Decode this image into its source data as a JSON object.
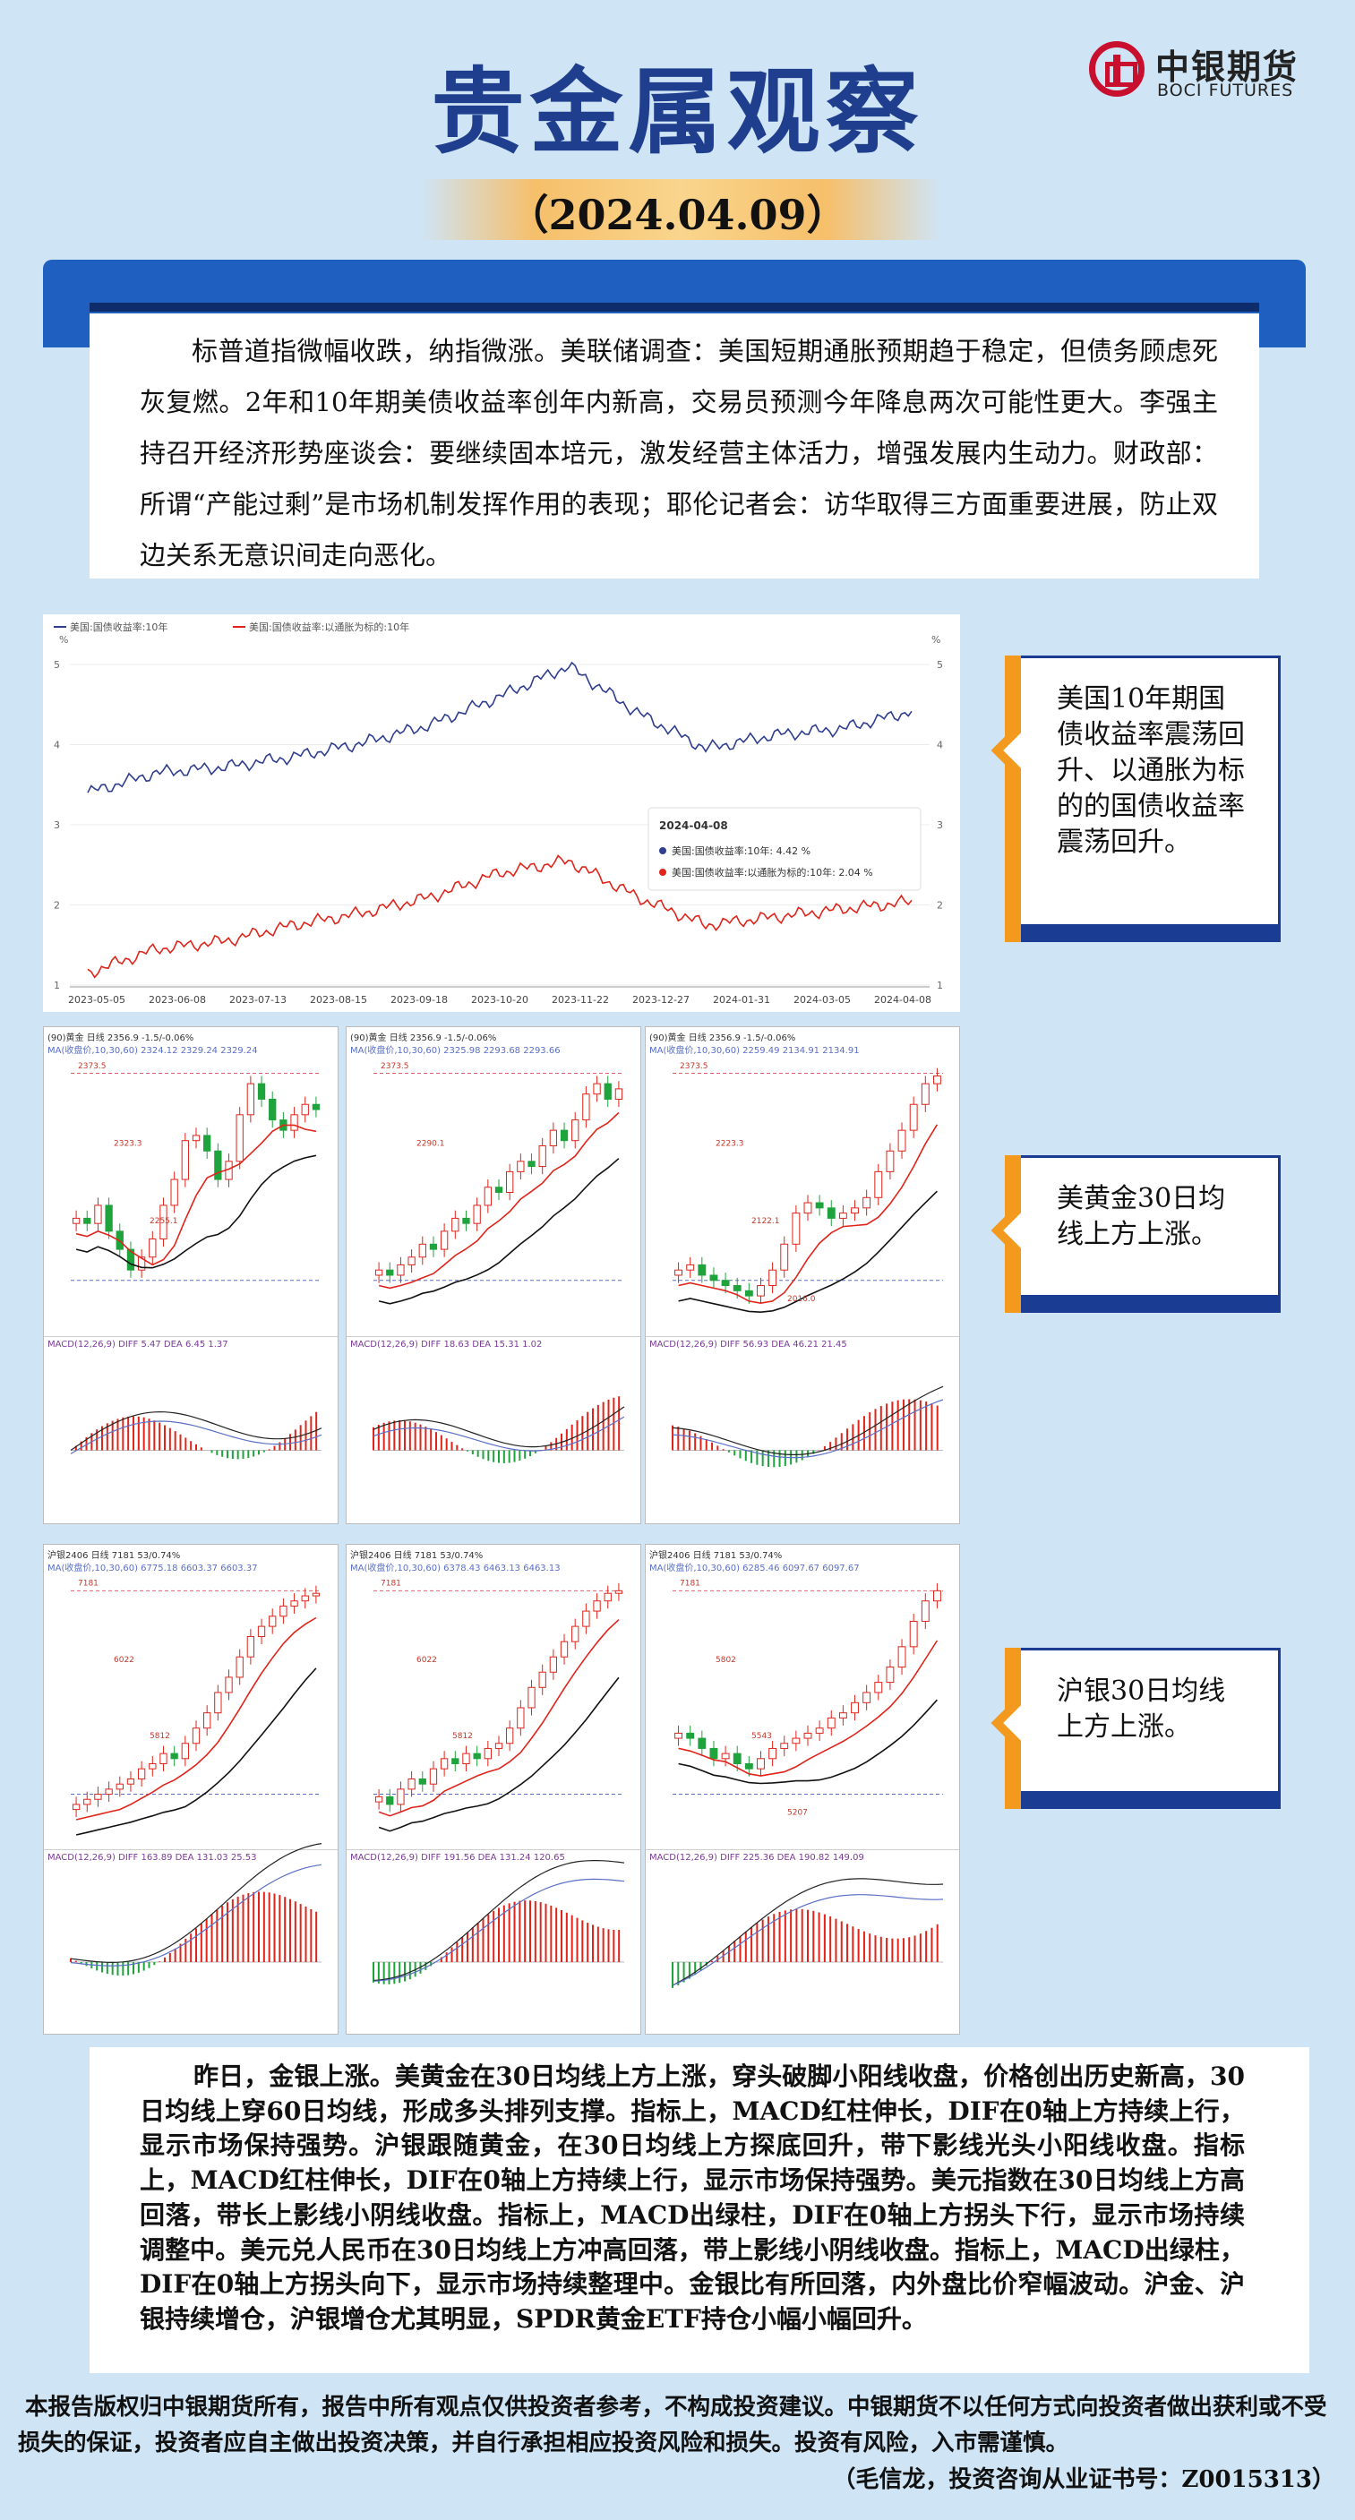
{
  "header": {
    "title": "贵金属观察",
    "date": "（2024.04.09）"
  },
  "logo": {
    "cn": "中银期货",
    "en": "BOCI FUTURES"
  },
  "intro_text": "标普道指微幅收跌，纳指微涨。美联储调查：美国短期通胀预期趋于稳定，但债务顾虑死灰复燃。2年和10年期美债收益率创年内新高，交易员预测今年降息两次可能性更大。李强主持召开经济形势座谈会：要继续固本培元，激发经营主体活力，增强发展内生动力。财政部：所谓“产能过剩”是市场机制发挥作用的表现；耶伦记者会：访华取得三方面重要进展，防止双边关系无意识间走向恶化。",
  "chart_data": [
    {
      "type": "line",
      "legend": [
        "美国:国债收益率:10年",
        "美国:国债收益率:以通胀为标的:10年"
      ],
      "x_ticks": [
        "2023-05-05",
        "2023-06-08",
        "2023-07-13",
        "2023-08-15",
        "2023-09-18",
        "2023-10-20",
        "2023-11-22",
        "2023-12-27",
        "2024-01-31",
        "2024-03-05",
        "2024-04-08"
      ],
      "y_ticks": [
        "1",
        "2",
        "3",
        "4",
        "5"
      ],
      "ylim": [
        1,
        5
      ],
      "unit": "%",
      "series": [
        {
          "name": "美国:国债收益率:10年",
          "color": "#2f3e8f",
          "values": [
            3.4,
            3.65,
            3.72,
            3.85,
            4.02,
            4.25,
            4.6,
            4.98,
            4.4,
            3.95,
            4.12,
            4.2,
            4.42
          ]
        },
        {
          "name": "美国:国债收益率:以通胀为标的:10年",
          "color": "#e0241a",
          "values": [
            1.15,
            1.45,
            1.55,
            1.75,
            1.9,
            2.1,
            2.4,
            2.55,
            2.1,
            1.75,
            1.85,
            1.95,
            2.04
          ]
        }
      ],
      "tooltip": {
        "date": "2024-04-08",
        "rows": [
          "美国:国债收益率:10年:  4.42 %",
          "美国:国债收益率:以通胀为标的:10年:  2.04 %"
        ]
      }
    }
  ],
  "panels": [
    {
      "hdr": "(90)黄金 日线  2356.9  -1.5/-0.06%",
      "ma": "MA(收盘价,10,30,60)  2324.12  2329.24  2329.24",
      "macd": "MACD(12,26,9)  DIFF 5.47  DEA 6.45  1.37",
      "macd_y": 206,
      "labels": [
        "2373.5",
        "2323.3",
        "2255.1"
      ]
    },
    {
      "hdr": "(90)黄金 日线  2356.9  -1.5/-0.06%",
      "ma": "MA(收盘价,10,30,60)  2325.98  2293.68  2293.66",
      "macd": "MACD(12,26,9)  DIFF 18.63  DEA 15.31  1.02",
      "macd_y": 206,
      "labels": [
        "2373.5",
        "2290.1"
      ]
    },
    {
      "hdr": "(90)黄金 日线  2356.9  -1.5/-0.06%",
      "ma": "MA(收盘价,10,30,60)  2259.49  2134.91  2134.91",
      "macd": "MACD(12,26,9)  DIFF 56.93  DEA 46.21  21.45",
      "macd_y": 206,
      "labels": [
        "2373.5",
        "2223.3",
        "2122.1",
        "2016.0"
      ]
    },
    {
      "hdr": "沪银2406 日线  7181  53/0.74%",
      "ma": "MA(收盘价,10,30,60)  6775.18  6603.37  6603.37",
      "macd": "MACD(12,26,9)  DIFF 163.89  DEA 131.03  25.53",
      "macd_y": 197,
      "labels": [
        "7181",
        "6022",
        "5812"
      ]
    },
    {
      "hdr": "沪银2406 日线  7181  53/0.74%",
      "ma": "MA(收盘价,10,30,60)  6378.43  6463.13  6463.13",
      "macd": "MACD(12,26,9)  DIFF 191.56  DEA 131.24  120.65",
      "macd_y": 197,
      "labels": [
        "7181",
        "6022",
        "5812"
      ]
    },
    {
      "hdr": "沪银2406 日线  7181  53/0.74%",
      "ma": "MA(收盘价,10,30,60)  6285.46  6097.67  6097.67",
      "macd": "MACD(12,26,9)  DIFF 225.36  DEA 190.82  149.09",
      "macd_y": 197,
      "labels": [
        "7181",
        "5802",
        "5543",
        "5207"
      ]
    }
  ],
  "callouts": [
    "美国10年期国债收益率震荡回升、以通胀为标的的国债收益率震荡回升。",
    "美黄金30日均线上方上涨。",
    "沪银30日均线上方上涨。"
  ],
  "analysis_text": "昨日，金银上涨。美黄金在30日均线上方上涨，穿头破脚小阳线收盘，价格创出历史新高，30日均线上穿60日均线，形成多头排列支撑。指标上，MACD红柱伸长，DIF在0轴上方持续上行，显示市场保持强势。沪银跟随黄金，在30日均线上方探底回升，带下影线光头小阳线收盘。指标上，MACD红柱伸长，DIF在0轴上方持续上行，显示市场保持强势。美元指数在30日均线上方高回落，带长上影线小阴线收盘。指标上，MACD出绿柱，DIF在0轴上方拐头下行，显示市场持续调整中。美元兑人民币在30日均线上方冲高回落，带上影线小阴线收盘。指标上，MACD出绿柱，DIF在0轴上方拐头向下，显示市场持续整理中。金银比有所回落，内外盘比价窄幅波动。沪金、沪银持续增仓，沪银增仓尤其明显，SPDR黄金ETF持仓小幅小幅回升。",
  "disclaimer": "本报告版权归中银期货所有，报告中所有观点仅供投资者参考，不构成投资建议。中银期货不以任何方式向投资者做出获利或不受损失的保证，投资者应自主做出投资决策，并自行承担相应投资风险和损失。投资有风险，入市需谨慎。",
  "author": "（毛信龙，投资咨询从业证书号：Z0015313）"
}
